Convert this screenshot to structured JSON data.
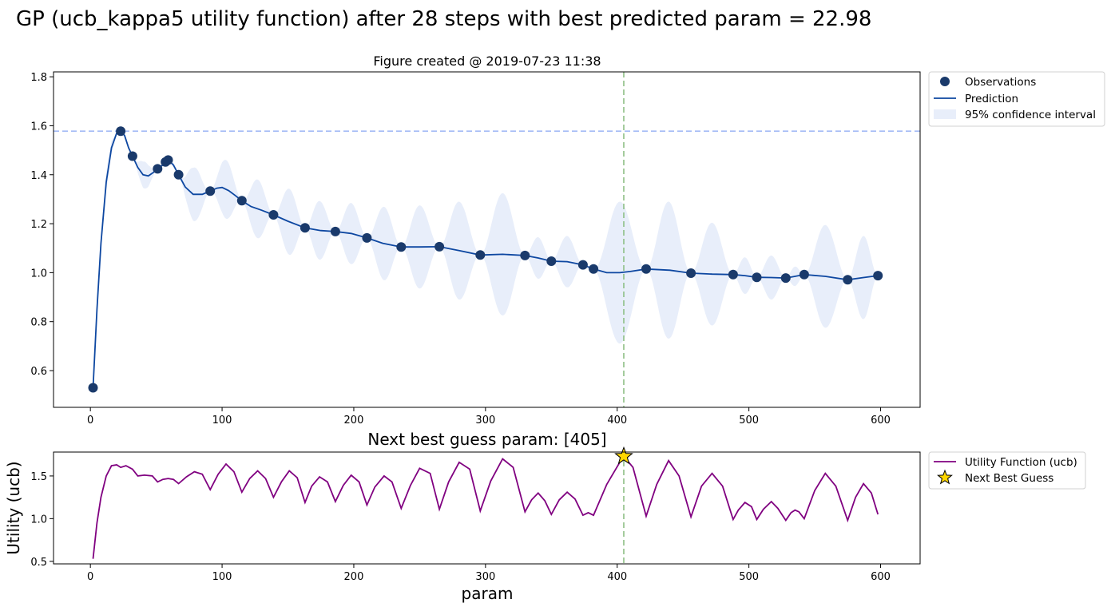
{
  "suptitle": "GP (ucb_kappa5 utility function) after 28 steps with best predicted param = 22.98",
  "chart_data": [
    {
      "type": "scatter",
      "title": "Figure created @ 2019-07-23 11:38",
      "xlabel": "",
      "ylabel": "",
      "xlim": [
        -28,
        630
      ],
      "ylim": [
        0.45,
        1.82
      ],
      "xticks": [
        "0",
        "100",
        "200",
        "300",
        "400",
        "500",
        "600"
      ],
      "yticks": [
        "0.6",
        "0.8",
        "1.0",
        "1.2",
        "1.4",
        "1.6",
        "1.8"
      ],
      "best_value_line_y": 1.578,
      "next_guess_line_x": 405,
      "legend_position": "outside-upper-right",
      "colors": {
        "observations": "#1a3a6b",
        "prediction": "#0d47a1",
        "confidence": "#e8eefa",
        "best_line": "#a4baf5",
        "next_line": "#8ebf86"
      },
      "legend": [
        "Observations",
        "Prediction",
        "95% confidence interval"
      ],
      "series": [
        {
          "name": "Observations",
          "x": [
            2,
            23,
            32,
            51,
            57,
            59,
            67,
            91,
            115,
            139,
            163,
            186,
            210,
            236,
            265,
            296,
            330,
            350,
            374,
            382,
            422,
            456,
            488,
            506,
            528,
            542,
            575,
            598
          ],
          "y": [
            0.53,
            1.578,
            1.476,
            1.424,
            1.452,
            1.46,
            1.4,
            1.333,
            1.294,
            1.236,
            1.183,
            1.168,
            1.142,
            1.105,
            1.106,
            1.072,
            1.07,
            1.047,
            1.032,
            1.015,
            1.015,
            0.998,
            0.992,
            0.981,
            0.978,
            0.992,
            0.971,
            0.988
          ]
        },
        {
          "name": "Prediction",
          "x": [
            2,
            5,
            8,
            12,
            16,
            20,
            23,
            26,
            29,
            32,
            36,
            40,
            44,
            48,
            51,
            55,
            59,
            63,
            67,
            72,
            78,
            85,
            91,
            96,
            100,
            105,
            110,
            115,
            122,
            130,
            139,
            150,
            163,
            175,
            186,
            198,
            210,
            222,
            236,
            250,
            265,
            280,
            296,
            313,
            330,
            340,
            350,
            362,
            374,
            382,
            392,
            402,
            410,
            422,
            440,
            456,
            472,
            488,
            497,
            506,
            517,
            528,
            535,
            542,
            558,
            575,
            587,
            598
          ],
          "y": [
            0.53,
            0.85,
            1.12,
            1.37,
            1.51,
            1.57,
            1.578,
            1.56,
            1.51,
            1.476,
            1.43,
            1.4,
            1.395,
            1.41,
            1.424,
            1.44,
            1.46,
            1.44,
            1.4,
            1.35,
            1.32,
            1.32,
            1.333,
            1.345,
            1.348,
            1.335,
            1.315,
            1.294,
            1.27,
            1.255,
            1.236,
            1.21,
            1.183,
            1.172,
            1.168,
            1.16,
            1.142,
            1.12,
            1.105,
            1.105,
            1.106,
            1.09,
            1.072,
            1.075,
            1.07,
            1.06,
            1.047,
            1.045,
            1.032,
            1.015,
            1.0,
            1.0,
            1.005,
            1.015,
            1.01,
            0.998,
            0.994,
            0.992,
            0.988,
            0.981,
            0.98,
            0.978,
            0.985,
            0.992,
            0.985,
            0.971,
            0.98,
            0.988
          ]
        },
        {
          "name": "95% confidence interval",
          "x": [
            2,
            12,
            23,
            27,
            32,
            41,
            51,
            54,
            59,
            63,
            67,
            79,
            91,
            103,
            115,
            127,
            139,
            151,
            163,
            174,
            186,
            198,
            210,
            223,
            236,
            250,
            265,
            280,
            296,
            313,
            330,
            340,
            350,
            362,
            374,
            378,
            382,
            402,
            422,
            439,
            456,
            472,
            488,
            497,
            506,
            517,
            528,
            535,
            542,
            558,
            575,
            587,
            598
          ],
          "half_width": [
            0,
            0.04,
            0,
            0.01,
            0,
            0.055,
            0,
            0.003,
            0,
            0.01,
            0,
            0.11,
            0,
            0.12,
            0,
            0.12,
            0,
            0.135,
            0,
            0.12,
            0,
            0.125,
            0,
            0.15,
            0,
            0.17,
            0,
            0.2,
            0,
            0.25,
            0,
            0.085,
            0,
            0.105,
            0,
            0.01,
            0,
            0.29,
            0,
            0.28,
            0,
            0.21,
            0,
            0.075,
            0,
            0.09,
            0,
            0.04,
            0,
            0.21,
            0,
            0.17,
            0
          ]
        }
      ]
    },
    {
      "type": "line",
      "title": "Next best guess param: [405]",
      "xlabel": "param",
      "ylabel": "Utility (ucb)",
      "xlim": [
        -28,
        630
      ],
      "ylim": [
        0.47,
        1.78
      ],
      "xticks": [
        "0",
        "100",
        "200",
        "300",
        "400",
        "500",
        "600"
      ],
      "yticks": [
        "0.5",
        "1.0",
        "1.5"
      ],
      "next_guess_line_x": 405,
      "legend_position": "outside-upper-right",
      "colors": {
        "utility": "#800080",
        "star": "#ffd700",
        "next_line": "#8ebf86"
      },
      "legend": [
        "Utility Function (ucb)",
        "Next Best Guess"
      ],
      "series": [
        {
          "name": "Utility Function (ucb)",
          "x": [
            2,
            5,
            8,
            12,
            16,
            20,
            23,
            27,
            32,
            36,
            41,
            47,
            51,
            55,
            59,
            63,
            67,
            73,
            79,
            85,
            91,
            97,
            103,
            109,
            115,
            121,
            127,
            133,
            139,
            145,
            151,
            157,
            163,
            168,
            174,
            180,
            186,
            192,
            198,
            204,
            210,
            216,
            223,
            229,
            236,
            243,
            250,
            258,
            265,
            272,
            280,
            288,
            296,
            304,
            313,
            321,
            330,
            335,
            340,
            345,
            350,
            356,
            362,
            368,
            374,
            378,
            382,
            392,
            402,
            405,
            412,
            422,
            430,
            439,
            447,
            456,
            464,
            472,
            480,
            488,
            492,
            497,
            502,
            506,
            511,
            517,
            522,
            528,
            532,
            535,
            538,
            542,
            550,
            558,
            566,
            575,
            581,
            587,
            593,
            598
          ],
          "y": [
            0.53,
            0.95,
            1.25,
            1.5,
            1.62,
            1.63,
            1.6,
            1.62,
            1.58,
            1.5,
            1.51,
            1.5,
            1.43,
            1.46,
            1.47,
            1.46,
            1.41,
            1.49,
            1.55,
            1.52,
            1.34,
            1.52,
            1.64,
            1.55,
            1.31,
            1.47,
            1.56,
            1.47,
            1.25,
            1.43,
            1.56,
            1.48,
            1.19,
            1.38,
            1.49,
            1.43,
            1.2,
            1.39,
            1.51,
            1.43,
            1.16,
            1.37,
            1.5,
            1.43,
            1.12,
            1.39,
            1.59,
            1.53,
            1.11,
            1.43,
            1.66,
            1.58,
            1.09,
            1.44,
            1.7,
            1.6,
            1.08,
            1.22,
            1.3,
            1.21,
            1.05,
            1.22,
            1.31,
            1.23,
            1.04,
            1.07,
            1.04,
            1.4,
            1.66,
            1.73,
            1.6,
            1.03,
            1.4,
            1.68,
            1.5,
            1.02,
            1.38,
            1.53,
            1.38,
            0.99,
            1.1,
            1.19,
            1.14,
            0.99,
            1.11,
            1.2,
            1.12,
            0.98,
            1.07,
            1.1,
            1.08,
            1.0,
            1.33,
            1.53,
            1.38,
            0.98,
            1.25,
            1.41,
            1.3,
            1.05
          ]
        },
        {
          "name": "Next Best Guess",
          "x": [
            405
          ],
          "y": [
            1.73
          ]
        }
      ]
    }
  ]
}
